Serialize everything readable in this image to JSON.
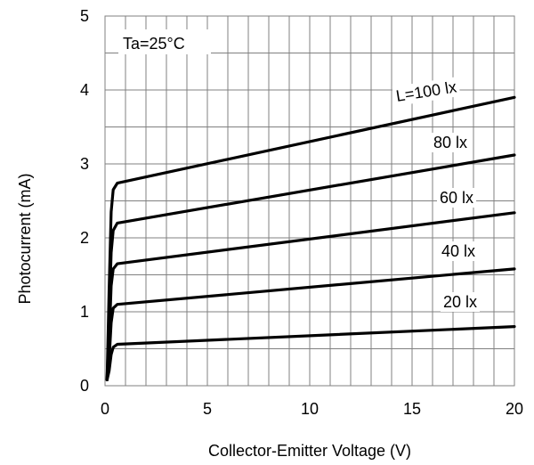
{
  "chart_data": {
    "type": "line",
    "xlabel": "Collector-Emitter Voltage  (V)",
    "ylabel": "Photocurrent  (mA)",
    "xlim": [
      0,
      20
    ],
    "ylim": [
      0,
      5
    ],
    "x_ticks": [
      "0",
      "5",
      "10",
      "15",
      "20"
    ],
    "y_ticks": [
      "0",
      "1",
      "2",
      "3",
      "4",
      "5"
    ],
    "grid": true,
    "condition_label": "Ta=25°C",
    "series": [
      {
        "name": "20 lx",
        "x": [
          0.1,
          0.2,
          0.3,
          0.4,
          0.6,
          20
        ],
        "y": [
          0.08,
          0.2,
          0.42,
          0.52,
          0.56,
          0.8
        ]
      },
      {
        "name": "40 lx",
        "x": [
          0.1,
          0.2,
          0.3,
          0.4,
          0.6,
          20
        ],
        "y": [
          0.08,
          0.35,
          0.85,
          1.05,
          1.1,
          1.58
        ]
      },
      {
        "name": "60 lx",
        "x": [
          0.1,
          0.2,
          0.3,
          0.4,
          0.6,
          20
        ],
        "y": [
          0.08,
          0.6,
          1.35,
          1.58,
          1.65,
          2.34
        ]
      },
      {
        "name": "80 lx",
        "x": [
          0.1,
          0.2,
          0.3,
          0.4,
          0.6,
          20
        ],
        "y": [
          0.08,
          0.9,
          1.8,
          2.1,
          2.2,
          3.12
        ]
      },
      {
        "name": "L=100 lx",
        "x": [
          0.1,
          0.2,
          0.3,
          0.4,
          0.6,
          20
        ],
        "y": [
          0.08,
          1.3,
          2.35,
          2.65,
          2.74,
          3.9
        ]
      }
    ]
  }
}
